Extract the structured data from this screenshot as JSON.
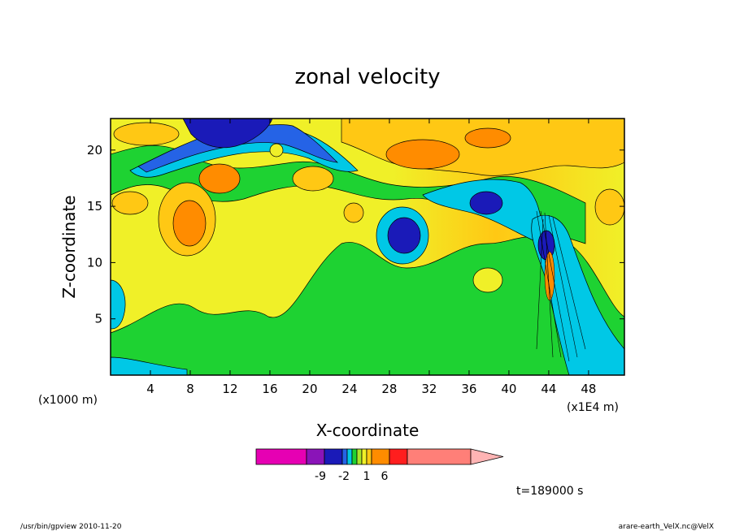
{
  "chart_data": {
    "type": "heatmap",
    "title": "zonal velocity",
    "xlabel": "X-coordinate",
    "ylabel": "Z-coordinate",
    "x_unit_note": "(x1E4 m)",
    "z_unit_note": "(x1000 m)",
    "xlim": [
      0,
      51.6
    ],
    "ylim": [
      0,
      22.8
    ],
    "x_ticks": [
      "4",
      "8",
      "12",
      "16",
      "20",
      "24",
      "28",
      "32",
      "36",
      "40",
      "44",
      "48"
    ],
    "y_ticks": [
      "5",
      "10",
      "15",
      "20"
    ],
    "colorbar": {
      "levels": [
        -9,
        -2,
        1,
        6
      ],
      "labels": [
        "-9",
        "-2",
        "1",
        "6"
      ],
      "colors": [
        "#e600b3",
        "#8a14b8",
        "#1a1ab8",
        "#2563e6",
        "#00c8e6",
        "#1ed232",
        "#aae628",
        "#f0f028",
        "#ffc814",
        "#ff8c00",
        "#ff1e1e",
        "#ff7f78",
        "#ffb4b4"
      ]
    },
    "features": [
      {
        "kind": "negative-jet",
        "label": "upper-left blue core",
        "x": 11,
        "z": 21.5,
        "value": -9
      },
      {
        "kind": "negative-jet",
        "label": "mid blue core",
        "x": 28,
        "z": 12.5,
        "value": -6
      },
      {
        "kind": "negative-jet",
        "label": "right blue core",
        "x": 36,
        "z": 15,
        "value": -5
      },
      {
        "kind": "positive-core",
        "label": "orange core",
        "x": 8,
        "z": 13,
        "value": 5
      },
      {
        "kind": "positive-core",
        "label": "orange core",
        "x": 10,
        "z": 17,
        "value": 4
      },
      {
        "kind": "shear-zone",
        "label": "wave breaking region",
        "x": 43.5,
        "z": 10,
        "value": -7
      }
    ]
  },
  "time_label": "t=189000 s",
  "footer_left": "/usr/bin/gpview  2010-11-20",
  "footer_right": "arare-earth_VelX.nc@VelX"
}
